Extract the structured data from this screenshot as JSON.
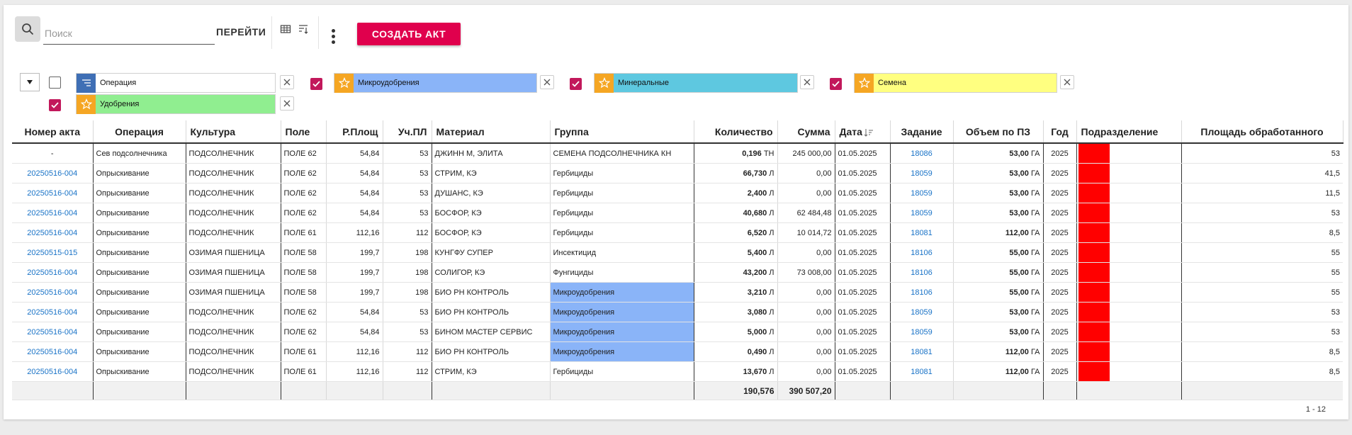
{
  "toolbar": {
    "search_placeholder": "Поиск",
    "search_value": "",
    "go_label": "ПЕРЕЙТИ",
    "create_label": "СОЗДАТЬ АКТ"
  },
  "filters": [
    {
      "label": "Операция",
      "color": "#ffffff",
      "icon": "list-icon",
      "icon_color": "#3f6fb5",
      "checked": false
    },
    {
      "label": "Микроудобрения",
      "color": "#8ab4f8",
      "icon": "star-icon",
      "icon_color": "#f5a623",
      "checked": true
    },
    {
      "label": "Минеральные",
      "color": "#5ec8e0",
      "icon": "star-icon",
      "icon_color": "#f5a623",
      "checked": true
    },
    {
      "label": "Семена",
      "color": "#ffff80",
      "icon": "star-icon",
      "icon_color": "#f5a623",
      "checked": true
    },
    {
      "label": "Удобрения",
      "color": "#90ee90",
      "icon": "star-icon",
      "icon_color": "#f5a623",
      "checked": true
    }
  ],
  "table": {
    "columns": [
      "Номер акта",
      "Операция",
      "Культура",
      "Поле",
      "Р.Площ",
      "Уч.ПЛ",
      "Материал",
      "Группа",
      "Количество",
      "Сумма",
      "Дата",
      "Задание",
      "Объем по ПЗ",
      "Год",
      "Подразделение",
      "Площадь обработанного"
    ],
    "rows": [
      {
        "act": "-",
        "act_link": false,
        "op": "Сев подсолнечника",
        "crop": "ПОДСОЛНЕЧНИК",
        "field": "ПОЛЕ 62",
        "rarea": "54,84",
        "uarea": "53",
        "material": "ДЖИНН М, ЭЛИТА",
        "group": "СЕМЕНА ПОДСОЛНЕЧНИКА КН",
        "group_hl": false,
        "qty": "0,196",
        "unit": "ТН",
        "sum": "245 000,00",
        "date": "01.05.2025",
        "task": "18086",
        "vol": "53,00",
        "vol_unit": "ГА",
        "year": "2025",
        "processed": "53"
      },
      {
        "act": "20250516-004",
        "act_link": true,
        "op": "Опрыскивание",
        "crop": "ПОДСОЛНЕЧНИК",
        "field": "ПОЛЕ 62",
        "rarea": "54,84",
        "uarea": "53",
        "material": "СТРИМ, КЭ",
        "group": "Гербициды",
        "group_hl": false,
        "qty": "66,730",
        "unit": "Л",
        "sum": "0,00",
        "date": "01.05.2025",
        "task": "18059",
        "vol": "53,00",
        "vol_unit": "ГА",
        "year": "2025",
        "processed": "41,5"
      },
      {
        "act": "20250516-004",
        "act_link": true,
        "op": "Опрыскивание",
        "crop": "ПОДСОЛНЕЧНИК",
        "field": "ПОЛЕ 62",
        "rarea": "54,84",
        "uarea": "53",
        "material": "ДУШАНС, КЭ",
        "group": "Гербициды",
        "group_hl": false,
        "qty": "2,400",
        "unit": "Л",
        "sum": "0,00",
        "date": "01.05.2025",
        "task": "18059",
        "vol": "53,00",
        "vol_unit": "ГА",
        "year": "2025",
        "processed": "11,5"
      },
      {
        "act": "20250516-004",
        "act_link": true,
        "op": "Опрыскивание",
        "crop": "ПОДСОЛНЕЧНИК",
        "field": "ПОЛЕ 62",
        "rarea": "54,84",
        "uarea": "53",
        "material": "БОСФОР, КЭ",
        "group": "Гербициды",
        "group_hl": false,
        "qty": "40,680",
        "unit": "Л",
        "sum": "62 484,48",
        "date": "01.05.2025",
        "task": "18059",
        "vol": "53,00",
        "vol_unit": "ГА",
        "year": "2025",
        "processed": "53"
      },
      {
        "act": "20250516-004",
        "act_link": true,
        "op": "Опрыскивание",
        "crop": "ПОДСОЛНЕЧНИК",
        "field": "ПОЛЕ 61",
        "rarea": "112,16",
        "uarea": "112",
        "material": "БОСФОР, КЭ",
        "group": "Гербициды",
        "group_hl": false,
        "qty": "6,520",
        "unit": "Л",
        "sum": "10 014,72",
        "date": "01.05.2025",
        "task": "18081",
        "vol": "112,00",
        "vol_unit": "ГА",
        "year": "2025",
        "processed": "8,5"
      },
      {
        "act": "20250515-015",
        "act_link": true,
        "op": "Опрыскивание",
        "crop": "ОЗИМАЯ ПШЕНИЦА",
        "field": "ПОЛЕ 58",
        "rarea": "199,7",
        "uarea": "198",
        "material": "КУНГФУ СУПЕР",
        "group": "Инсектицид",
        "group_hl": false,
        "qty": "5,400",
        "unit": "Л",
        "sum": "0,00",
        "date": "01.05.2025",
        "task": "18106",
        "vol": "55,00",
        "vol_unit": "ГА",
        "year": "2025",
        "processed": "55"
      },
      {
        "act": "20250516-004",
        "act_link": true,
        "op": "Опрыскивание",
        "crop": "ОЗИМАЯ ПШЕНИЦА",
        "field": "ПОЛЕ 58",
        "rarea": "199,7",
        "uarea": "198",
        "material": "СОЛИГОР, КЭ",
        "group": "Фунгициды",
        "group_hl": false,
        "qty": "43,200",
        "unit": "Л",
        "sum": "73 008,00",
        "date": "01.05.2025",
        "task": "18106",
        "vol": "55,00",
        "vol_unit": "ГА",
        "year": "2025",
        "processed": "55"
      },
      {
        "act": "20250516-004",
        "act_link": true,
        "op": "Опрыскивание",
        "crop": "ОЗИМАЯ ПШЕНИЦА",
        "field": "ПОЛЕ 58",
        "rarea": "199,7",
        "uarea": "198",
        "material": "БИО РН КОНТРОЛЬ",
        "group": "Микроудобрения",
        "group_hl": true,
        "qty": "3,210",
        "unit": "Л",
        "sum": "0,00",
        "date": "01.05.2025",
        "task": "18106",
        "vol": "55,00",
        "vol_unit": "ГА",
        "year": "2025",
        "processed": "55"
      },
      {
        "act": "20250516-004",
        "act_link": true,
        "op": "Опрыскивание",
        "crop": "ПОДСОЛНЕЧНИК",
        "field": "ПОЛЕ 62",
        "rarea": "54,84",
        "uarea": "53",
        "material": "БИО РН КОНТРОЛЬ",
        "group": "Микроудобрения",
        "group_hl": true,
        "qty": "3,080",
        "unit": "Л",
        "sum": "0,00",
        "date": "01.05.2025",
        "task": "18059",
        "vol": "53,00",
        "vol_unit": "ГА",
        "year": "2025",
        "processed": "53"
      },
      {
        "act": "20250516-004",
        "act_link": true,
        "op": "Опрыскивание",
        "crop": "ПОДСОЛНЕЧНИК",
        "field": "ПОЛЕ 62",
        "rarea": "54,84",
        "uarea": "53",
        "material": "БИНОМ МАСТЕР СЕРВИС",
        "group": "Микроудобрения",
        "group_hl": true,
        "qty": "5,000",
        "unit": "Л",
        "sum": "0,00",
        "date": "01.05.2025",
        "task": "18059",
        "vol": "53,00",
        "vol_unit": "ГА",
        "year": "2025",
        "processed": "53"
      },
      {
        "act": "20250516-004",
        "act_link": true,
        "op": "Опрыскивание",
        "crop": "ПОДСОЛНЕЧНИК",
        "field": "ПОЛЕ 61",
        "rarea": "112,16",
        "uarea": "112",
        "material": "БИО РН КОНТРОЛЬ",
        "group": "Микроудобрения",
        "group_hl": true,
        "qty": "0,490",
        "unit": "Л",
        "sum": "0,00",
        "date": "01.05.2025",
        "task": "18081",
        "vol": "112,00",
        "vol_unit": "ГА",
        "year": "2025",
        "processed": "8,5"
      },
      {
        "act": "20250516-004",
        "act_link": true,
        "op": "Опрыскивание",
        "crop": "ПОДСОЛНЕЧНИК",
        "field": "ПОЛЕ 61",
        "rarea": "112,16",
        "uarea": "112",
        "material": "СТРИМ, КЭ",
        "group": "Гербициды",
        "group_hl": false,
        "qty": "13,670",
        "unit": "Л",
        "sum": "0,00",
        "date": "01.05.2025",
        "task": "18081",
        "vol": "112,00",
        "vol_unit": "ГА",
        "year": "2025",
        "processed": "8,5"
      }
    ],
    "totals": {
      "qty": "190,576",
      "sum": "390 507,20"
    }
  },
  "pager": {
    "label": "1 - 12"
  },
  "colors": {
    "accent": "#e0004d",
    "link": "#1a73c7",
    "highlight": "#8ab4f8",
    "division": "#ff0000",
    "checkbox": "#c2185b"
  }
}
